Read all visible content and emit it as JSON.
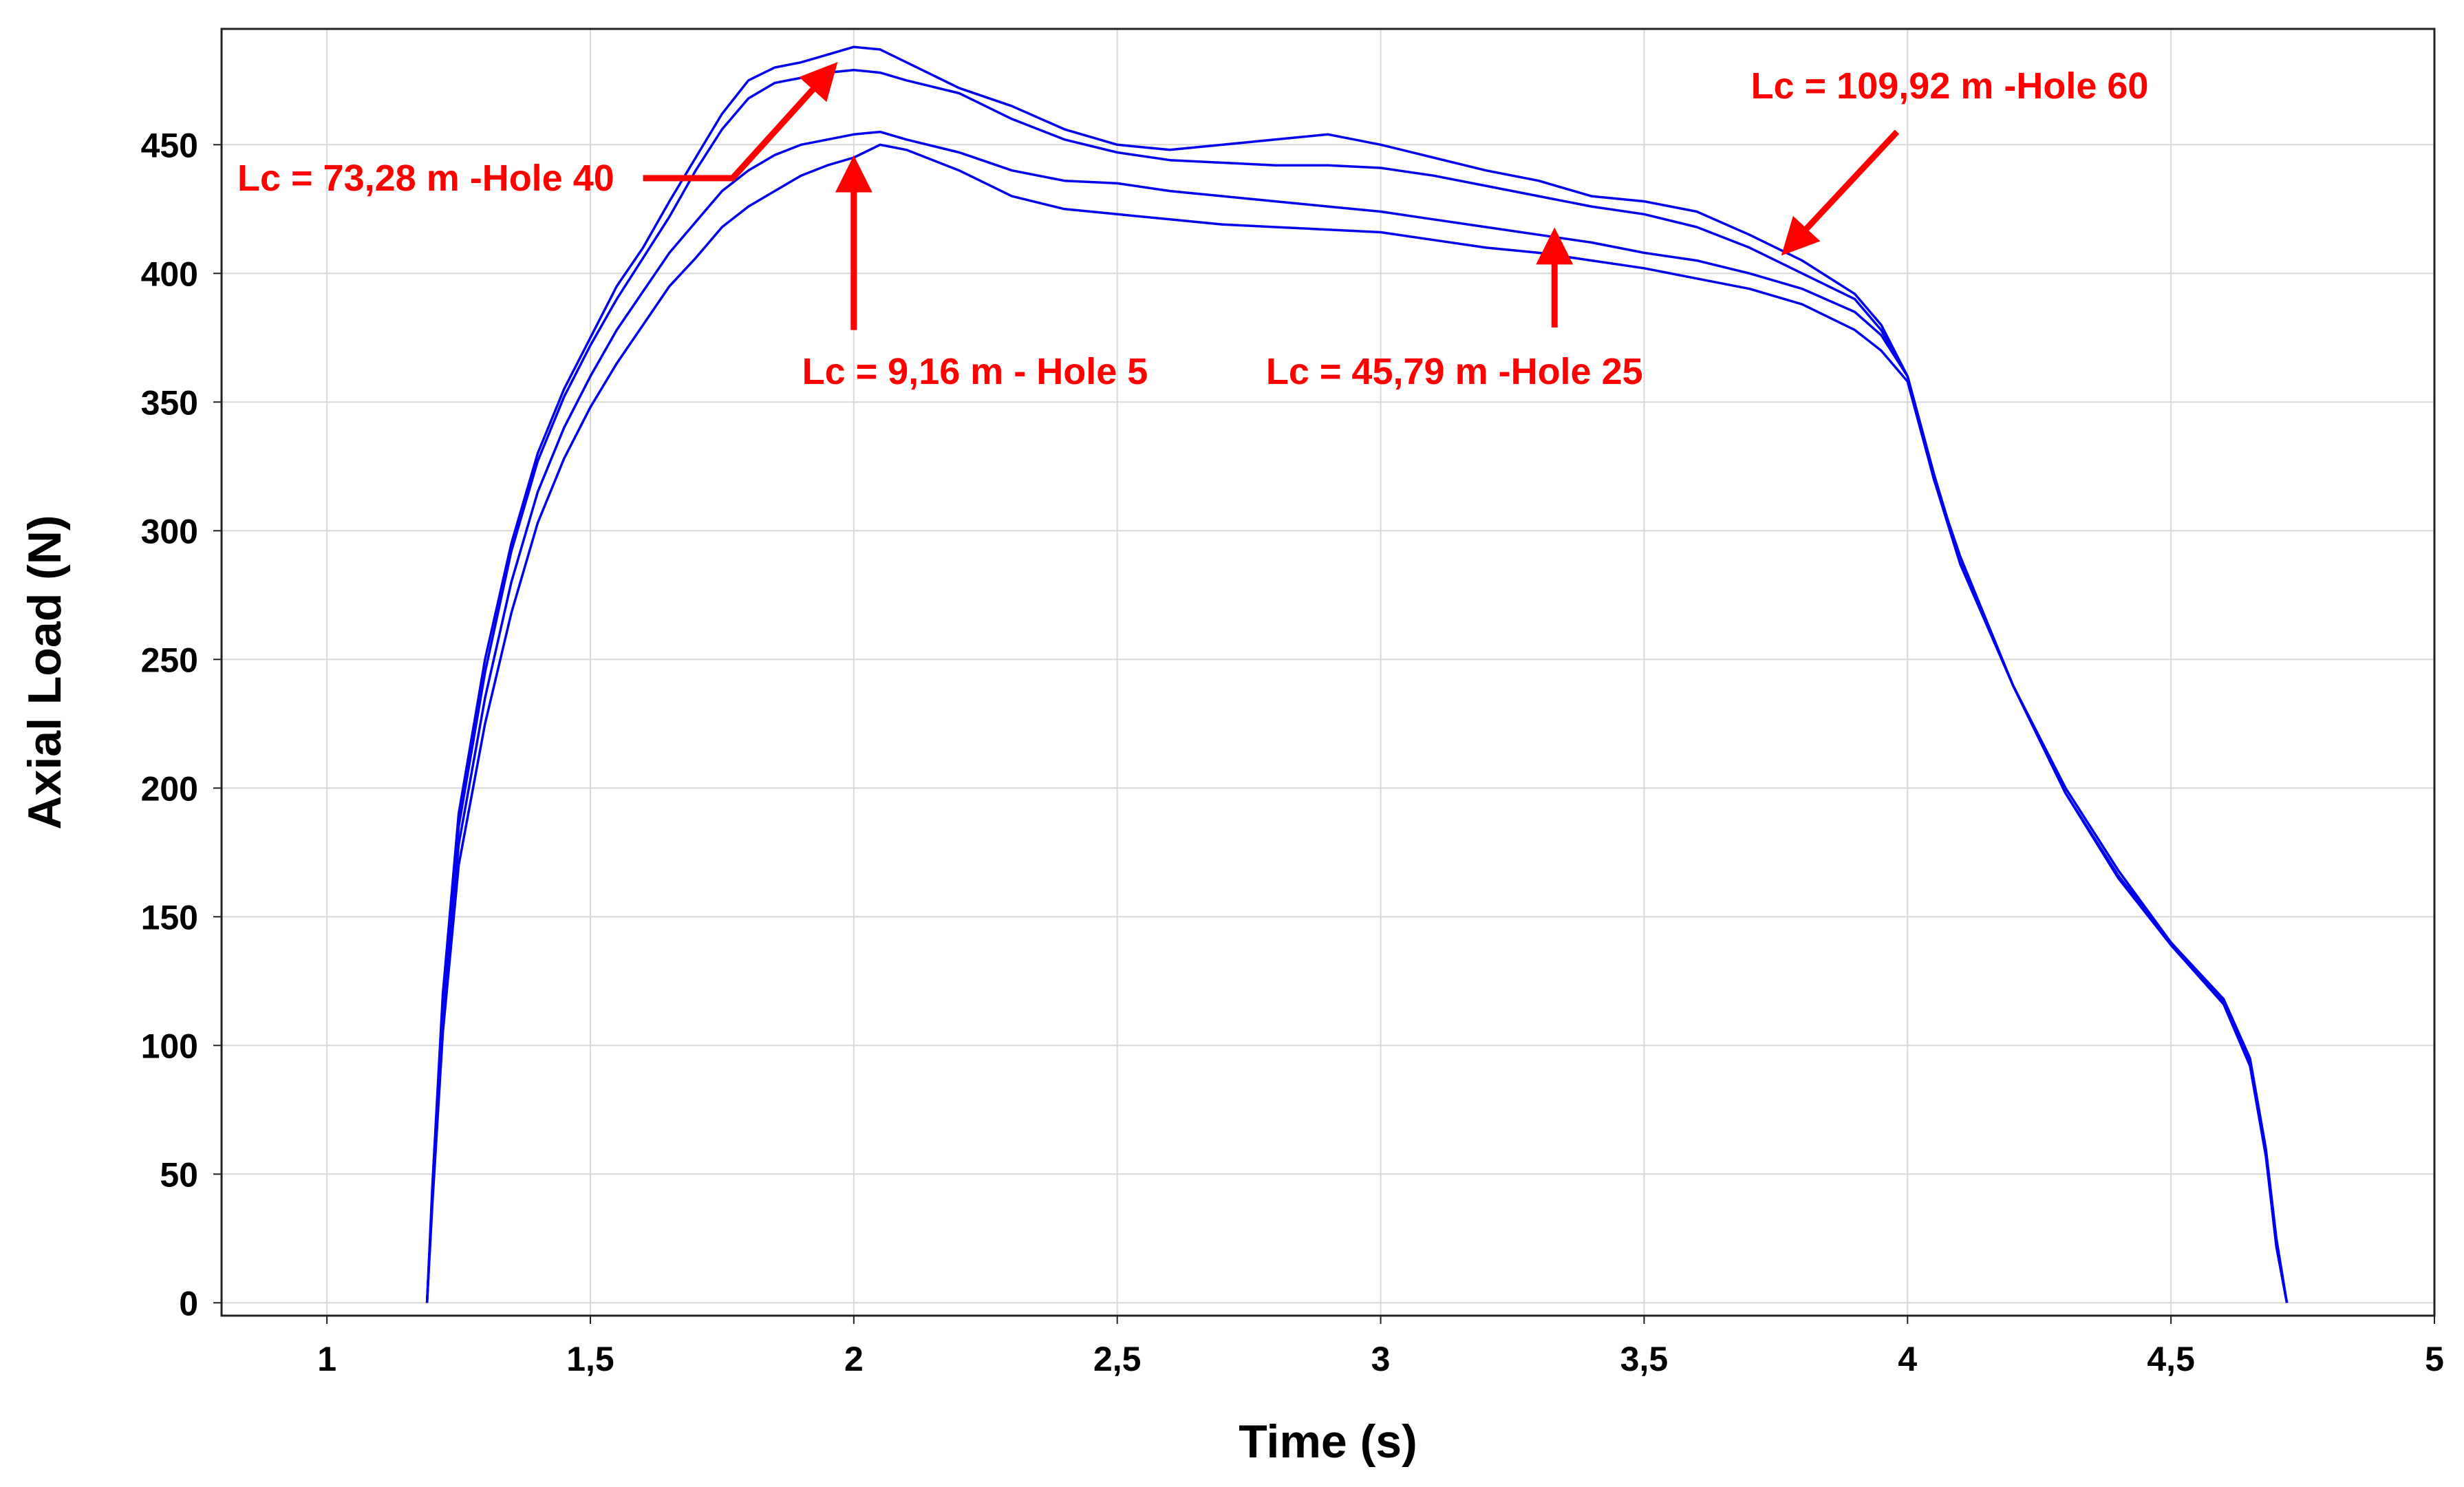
{
  "chart_data": {
    "type": "line",
    "title": "",
    "xlabel": "Time (s)",
    "ylabel": "Axial Load (N)",
    "xlim": [
      0.8,
      5.0
    ],
    "ylim": [
      -5,
      495
    ],
    "xticks": [
      1,
      1.5,
      2,
      2.5,
      3,
      3.5,
      4,
      4.5,
      5
    ],
    "xtick_labels": [
      "1",
      "1,5",
      "2",
      "2,5",
      "3",
      "3,5",
      "4",
      "4,5",
      "5"
    ],
    "yticks": [
      0,
      50,
      100,
      150,
      200,
      250,
      300,
      350,
      400,
      450
    ],
    "ytick_labels": [
      "0",
      "50",
      "100",
      "150",
      "200",
      "250",
      "300",
      "350",
      "400",
      "450"
    ],
    "grid": true,
    "line_color": "#0000ee",
    "annotation_color": "#ff0000",
    "series": [
      {
        "name": "Lc = 73,28 m -Hole 40",
        "x": [
          1.19,
          1.2,
          1.22,
          1.25,
          1.3,
          1.35,
          1.4,
          1.45,
          1.5,
          1.55,
          1.6,
          1.65,
          1.7,
          1.75,
          1.8,
          1.85,
          1.9,
          1.95,
          2.0,
          2.05,
          2.1,
          2.2,
          2.3,
          2.4,
          2.5,
          2.6,
          2.7,
          2.8,
          2.9,
          3.0,
          3.1,
          3.2,
          3.3,
          3.4,
          3.5,
          3.6,
          3.7,
          3.8,
          3.9,
          3.95,
          4.0,
          4.05,
          4.1,
          4.2,
          4.3,
          4.4,
          4.5,
          4.6,
          4.65,
          4.68,
          4.7,
          4.72
        ],
        "y": [
          0,
          45,
          120,
          190,
          250,
          295,
          330,
          355,
          375,
          395,
          410,
          428,
          445,
          462,
          475,
          480,
          482,
          485,
          488,
          487,
          482,
          472,
          465,
          456,
          450,
          448,
          450,
          452,
          454,
          450,
          445,
          440,
          436,
          430,
          428,
          424,
          415,
          405,
          392,
          380,
          360,
          320,
          290,
          240,
          200,
          168,
          140,
          118,
          95,
          60,
          25,
          0
        ]
      },
      {
        "name": "Lc = 109,92 m -Hole 60",
        "x": [
          1.19,
          1.2,
          1.22,
          1.25,
          1.3,
          1.35,
          1.4,
          1.45,
          1.5,
          1.55,
          1.6,
          1.65,
          1.7,
          1.75,
          1.8,
          1.85,
          1.9,
          1.95,
          2.0,
          2.05,
          2.1,
          2.2,
          2.3,
          2.4,
          2.5,
          2.6,
          2.7,
          2.8,
          2.9,
          3.0,
          3.1,
          3.2,
          3.3,
          3.4,
          3.5,
          3.6,
          3.7,
          3.8,
          3.9,
          3.95,
          4.0,
          4.05,
          4.1,
          4.2,
          4.3,
          4.4,
          4.5,
          4.6,
          4.65,
          4.68,
          4.7,
          4.72
        ],
        "y": [
          0,
          42,
          115,
          185,
          245,
          292,
          327,
          352,
          372,
          390,
          406,
          422,
          440,
          456,
          468,
          474,
          476,
          478,
          479,
          478,
          475,
          470,
          460,
          452,
          447,
          444,
          443,
          442,
          442,
          441,
          438,
          434,
          430,
          426,
          423,
          418,
          410,
          400,
          390,
          378,
          360,
          322,
          288,
          240,
          198,
          166,
          140,
          117,
          93,
          58,
          22,
          0
        ]
      },
      {
        "name": "Lc = 45,79 m -Hole 25",
        "x": [
          1.19,
          1.2,
          1.22,
          1.25,
          1.3,
          1.35,
          1.4,
          1.45,
          1.5,
          1.55,
          1.6,
          1.65,
          1.7,
          1.75,
          1.8,
          1.85,
          1.9,
          1.95,
          2.0,
          2.05,
          2.1,
          2.2,
          2.3,
          2.4,
          2.5,
          2.6,
          2.7,
          2.8,
          2.9,
          3.0,
          3.1,
          3.2,
          3.3,
          3.4,
          3.5,
          3.6,
          3.7,
          3.8,
          3.9,
          3.95,
          4.0,
          4.05,
          4.1,
          4.2,
          4.3,
          4.4,
          4.5,
          4.6,
          4.65,
          4.68,
          4.7,
          4.72
        ],
        "y": [
          0,
          40,
          110,
          178,
          235,
          280,
          315,
          340,
          360,
          378,
          393,
          408,
          420,
          432,
          440,
          446,
          450,
          452,
          454,
          455,
          452,
          447,
          440,
          436,
          435,
          432,
          430,
          428,
          426,
          424,
          421,
          418,
          415,
          412,
          408,
          405,
          400,
          394,
          385,
          376,
          360,
          322,
          288,
          240,
          198,
          166,
          140,
          117,
          93,
          58,
          22,
          0
        ]
      },
      {
        "name": "Lc = 9,16 m - Hole 5",
        "x": [
          1.19,
          1.2,
          1.22,
          1.25,
          1.3,
          1.35,
          1.4,
          1.45,
          1.5,
          1.55,
          1.6,
          1.65,
          1.7,
          1.75,
          1.8,
          1.85,
          1.9,
          1.95,
          2.0,
          2.05,
          2.1,
          2.2,
          2.3,
          2.4,
          2.5,
          2.6,
          2.7,
          2.8,
          2.9,
          3.0,
          3.1,
          3.2,
          3.3,
          3.4,
          3.5,
          3.6,
          3.7,
          3.8,
          3.9,
          3.95,
          4.0,
          4.05,
          4.1,
          4.2,
          4.3,
          4.4,
          4.5,
          4.6,
          4.65,
          4.68,
          4.7,
          4.72
        ],
        "y": [
          0,
          38,
          105,
          170,
          225,
          268,
          303,
          328,
          348,
          365,
          380,
          395,
          406,
          418,
          426,
          432,
          438,
          442,
          445,
          450,
          448,
          440,
          430,
          425,
          423,
          421,
          419,
          418,
          417,
          416,
          413,
          410,
          408,
          405,
          402,
          398,
          394,
          388,
          378,
          370,
          358,
          320,
          287,
          240,
          198,
          165,
          139,
          116,
          92,
          57,
          22,
          0
        ]
      }
    ],
    "annotations": [
      {
        "text": "Lc = 73,28 m -Hole 40",
        "series": 0,
        "target_x": 1.96,
        "target_y": 480
      },
      {
        "text": "Lc = 9,16 m - Hole 5",
        "series": 3,
        "target_x": 2.0,
        "target_y": 443
      },
      {
        "text": "Lc = 45,79 m -Hole 25",
        "series": 2,
        "target_x": 3.33,
        "target_y": 415
      },
      {
        "text": "Lc = 109,92 m -Hole 60",
        "series": 1,
        "target_x": 3.77,
        "target_y": 409
      }
    ]
  }
}
